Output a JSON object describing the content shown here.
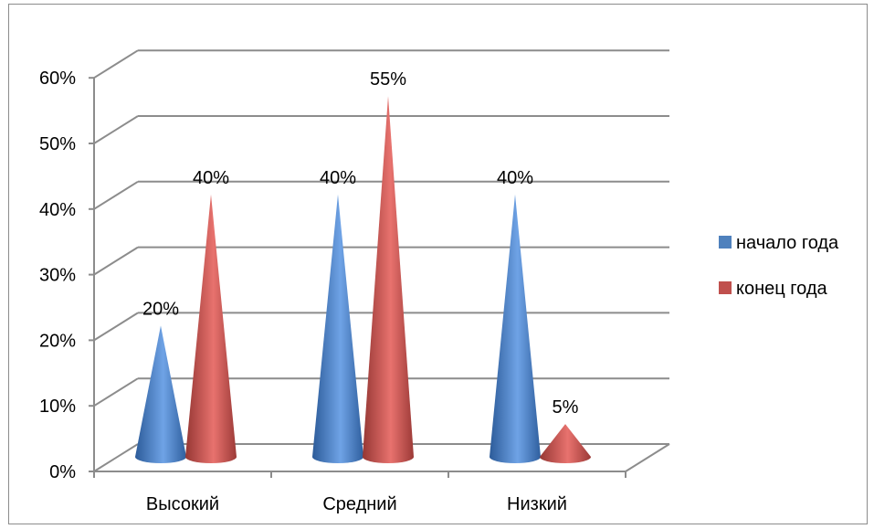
{
  "chart_data": {
    "type": "bar",
    "style": "3d-cone",
    "categories": [
      "Высокий",
      "Средний",
      "Низкий"
    ],
    "series": [
      {
        "name": "начало года",
        "values": [
          20,
          40,
          40
        ],
        "labels": [
          "20%",
          "40%",
          "40%"
        ],
        "color": "#4F81BD"
      },
      {
        "name": "конец года",
        "values": [
          40,
          55,
          5
        ],
        "labels": [
          "40%",
          "55%",
          "5%"
        ],
        "color": "#C0504D"
      }
    ],
    "yticks": [
      "0%",
      "10%",
      "20%",
      "30%",
      "40%",
      "50%",
      "60%"
    ],
    "ylim": [
      0,
      60
    ],
    "grid": true,
    "legend": "right"
  }
}
